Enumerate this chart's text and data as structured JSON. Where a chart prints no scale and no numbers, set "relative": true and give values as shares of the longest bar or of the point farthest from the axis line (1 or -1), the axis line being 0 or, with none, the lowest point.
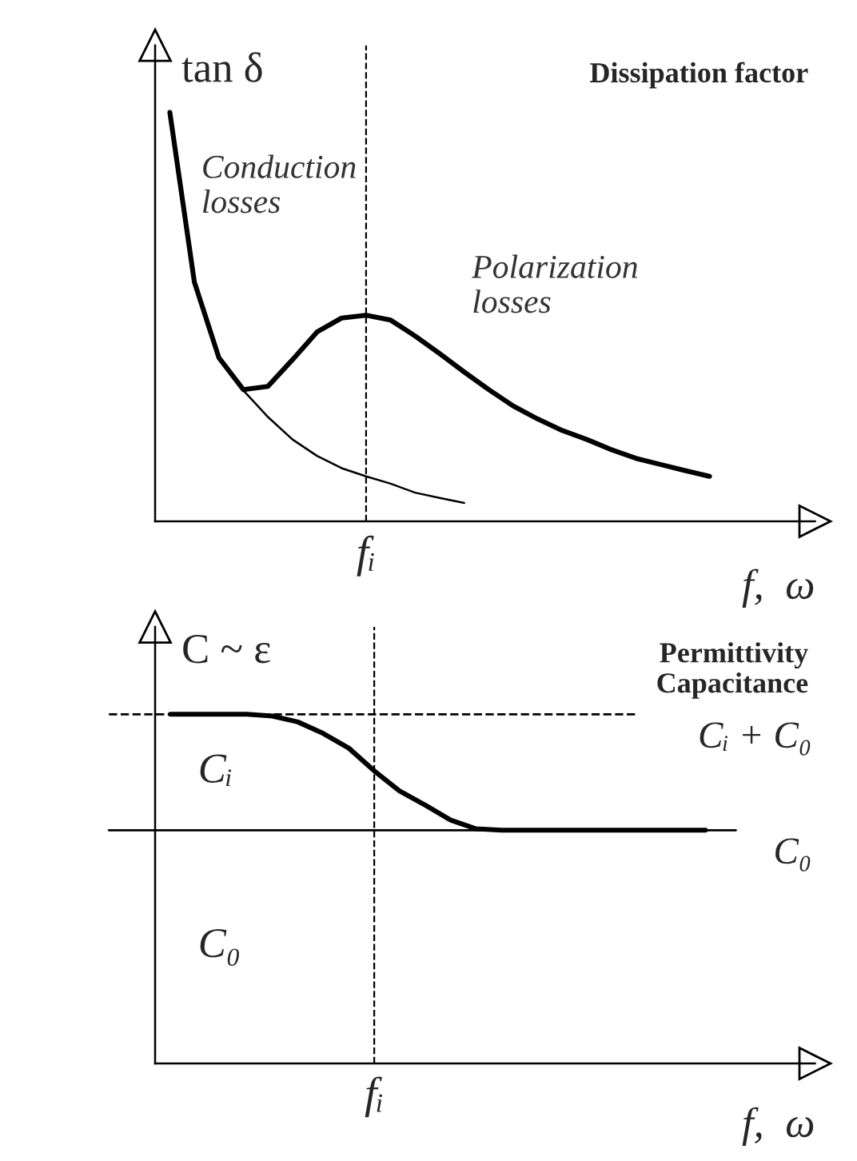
{
  "chart_data": [
    {
      "type": "line",
      "title": "Dissipation factor",
      "ylabel": "tan δ",
      "xlabel": "f,  ω",
      "relative": true,
      "categories": [
        null,
        null,
        null,
        null,
        null,
        null,
        null,
        null,
        null,
        null,
        null,
        null,
        null,
        null,
        null,
        null,
        null,
        null,
        null,
        null,
        null,
        null,
        null
      ],
      "series": [
        {
          "color": "#000000",
          "values": [
            1.0,
            0.585,
            0.4,
            0.322,
            0.33,
            0.395,
            0.463,
            0.497,
            0.504,
            0.492,
            0.453,
            0.41,
            0.365,
            0.322,
            0.282,
            0.25,
            0.222,
            0.2,
            0.175,
            0.154,
            0.139,
            0.124,
            0.11
          ]
        },
        {
          "color": "#000000",
          "values": [
            null,
            null,
            0.4,
            0.32,
            0.255,
            0.2,
            0.16,
            0.13,
            0.11,
            0.092,
            0.07,
            0.057,
            0.045,
            null,
            null,
            null,
            null,
            null,
            null,
            null,
            null,
            null,
            null
          ]
        }
      ],
      "annotations": [
        "Conduction\nlosses",
        "Polarization\nlosses",
        "fᵢ"
      ]
    },
    {
      "type": "line",
      "title": "Permittivity\nCapacitance",
      "ylabel": "C ~ ε",
      "xlabel": "f,  ω",
      "relative": true,
      "categories": [
        null,
        null,
        null,
        null,
        null,
        null,
        null,
        null,
        null,
        null,
        null,
        null,
        null,
        null,
        null,
        null,
        null,
        null,
        null,
        null,
        null,
        null
      ],
      "series": [
        {
          "color": "#000000",
          "values": [
            1,
            1,
            1,
            1,
            0.995,
            0.978,
            0.945,
            0.903,
            0.838,
            0.78,
            0.74,
            0.697,
            0.672,
            0.668,
            0.668,
            0.668,
            0.668,
            0.668,
            0.668,
            0.668,
            0.668,
            0.668
          ]
        }
      ],
      "ref_lines": [
        {
          "axis": "y",
          "value": 1,
          "label": "Cᵢ + C₀",
          "line_style": "dashed"
        },
        {
          "axis": "y",
          "value": 0.668,
          "label": "C₀",
          "line_style": "solid"
        }
      ],
      "annotations": [
        "Cᵢ",
        "C₀",
        "fᵢ"
      ]
    }
  ]
}
